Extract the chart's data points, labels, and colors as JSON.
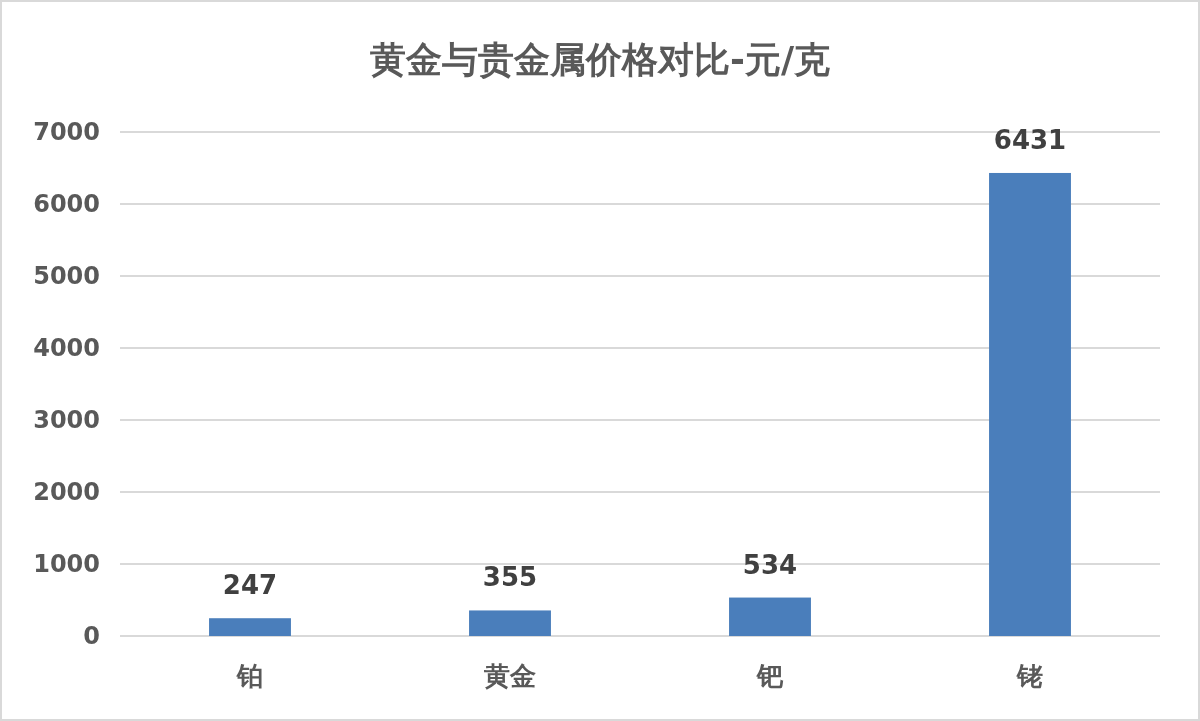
{
  "chart_data": {
    "type": "bar",
    "title": "黄金与贵金属价格对比-元/克",
    "categories": [
      "铂",
      "黄金",
      "钯",
      "铑"
    ],
    "values": [
      247,
      355,
      534,
      6431
    ],
    "color": "#4a7ebb",
    "ylim": [
      0,
      7000
    ],
    "yticks": [
      0,
      1000,
      2000,
      3000,
      4000,
      5000,
      6000,
      7000
    ],
    "grid": "y",
    "data_labels": true
  }
}
